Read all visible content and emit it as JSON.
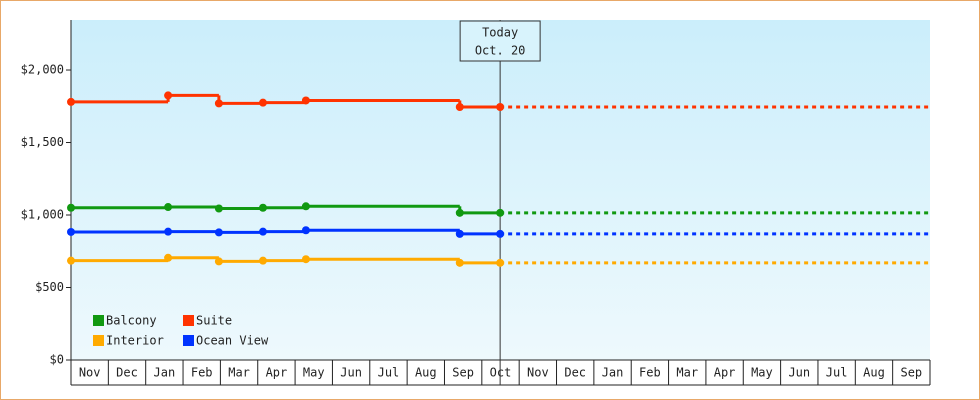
{
  "chart_data": {
    "type": "step",
    "categories": [
      "Nov",
      "Dec",
      "Jan",
      "Feb",
      "Mar",
      "Apr",
      "May",
      "Jun",
      "Jul",
      "Aug",
      "Sep",
      "Oct",
      "Nov",
      "Dec",
      "Jan",
      "Feb",
      "Mar",
      "Apr",
      "May",
      "Jun",
      "Jul",
      "Aug",
      "Sep"
    ],
    "xlim": [
      0,
      23
    ],
    "ylim": [
      0,
      2345
    ],
    "yticks": [
      {
        "value": 0,
        "label": "$0"
      },
      {
        "value": 500,
        "label": "$500"
      },
      {
        "value": 1000,
        "label": "$1,000"
      },
      {
        "value": 1500,
        "label": "$1,500"
      },
      {
        "value": 2000,
        "label": "$2,000"
      }
    ],
    "x": [
      0,
      2.6,
      3.96,
      5.14,
      6.29,
      10.41,
      11.49
    ],
    "series": [
      {
        "name": "Balcony",
        "color": "#119911",
        "values": [
          1050,
          1055,
          1045,
          1050,
          1060,
          1015,
          1015
        ]
      },
      {
        "name": "Suite",
        "color": "#ff3300",
        "values": [
          1780,
          1825,
          1770,
          1775,
          1790,
          1745,
          1745
        ]
      },
      {
        "name": "Interior",
        "color": "#ffaa00",
        "values": [
          685,
          705,
          680,
          685,
          695,
          670,
          670
        ]
      },
      {
        "name": "Ocean View",
        "color": "#0033ff",
        "values": [
          883,
          885,
          880,
          885,
          895,
          870,
          870
        ]
      }
    ],
    "annotation": {
      "lines": [
        "Today",
        "Oct. 20"
      ],
      "x": 11.49
    },
    "legend": "bottom-left"
  }
}
